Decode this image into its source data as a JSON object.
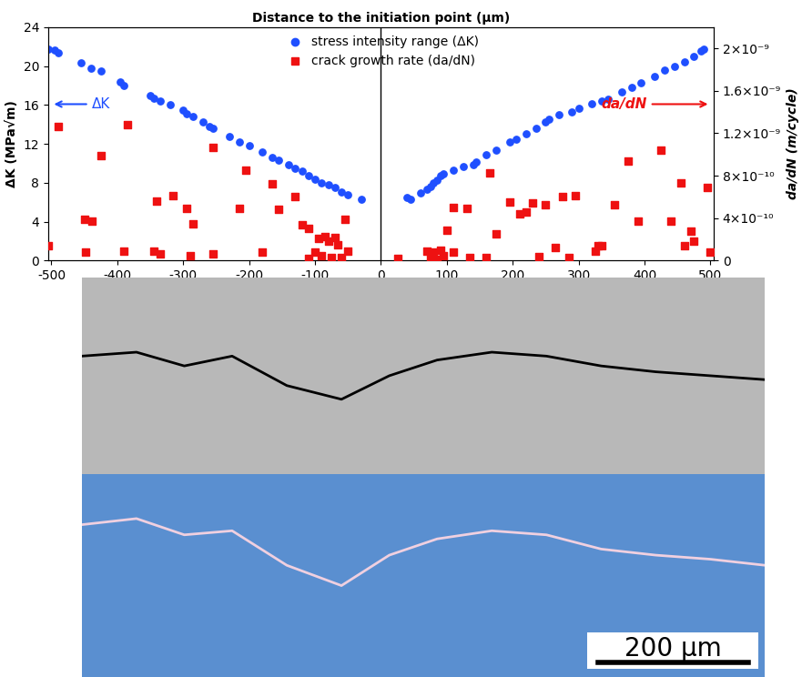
{
  "chart_data": {
    "type": "scatter",
    "x_label": "Distance to the initiation point (μm)",
    "y_label": "ΔK (MPa√m)",
    "y2_label": "da/dN (m/cycle)",
    "annotations": [
      "ΔK",
      "da/dN"
    ],
    "xlim": [
      -505,
      505
    ],
    "xticks": [
      -500,
      -400,
      -300,
      -200,
      -100,
      0,
      100,
      200,
      300,
      400,
      500
    ],
    "ylim": [
      0,
      24
    ],
    "yticks": [
      0,
      4,
      8,
      12,
      16,
      20,
      24
    ],
    "y2lim": [
      0,
      2.2e-09
    ],
    "y2ticks": [
      0,
      {
        "value": 4e-10,
        "label": "4×10⁻¹⁰"
      },
      {
        "value": 8e-10,
        "label": "8×10⁻¹⁰"
      },
      {
        "value": 1.2e-09,
        "label": "1.2×10⁻⁹"
      },
      {
        "value": 1.6e-09,
        "label": "1.6×10⁻⁹"
      },
      {
        "value": 2e-09,
        "label": "2×10⁻⁹"
      }
    ],
    "legend": "upper center",
    "series": [
      {
        "name": "stress intensity range (ΔK)",
        "color": "#1f4fff",
        "marker": "circle",
        "axis": "y",
        "x": [
          -505,
          -495,
          -490,
          -455,
          -440,
          -425,
          -395,
          -390,
          -350,
          -345,
          -335,
          -320,
          -300,
          -295,
          -285,
          -270,
          -260,
          -255,
          -230,
          -215,
          -200,
          -180,
          -165,
          -155,
          -140,
          -130,
          -120,
          -110,
          -100,
          -90,
          -80,
          -70,
          -60,
          -50,
          -30,
          40,
          45,
          60,
          70,
          75,
          80,
          85,
          90,
          95,
          110,
          125,
          140,
          145,
          160,
          175,
          195,
          205,
          220,
          235,
          250,
          255,
          270,
          290,
          300,
          320,
          335,
          345,
          365,
          380,
          395,
          415,
          430,
          445,
          460,
          475,
          485,
          490
        ],
        "values": [
          21.7,
          21.6,
          21.4,
          20.3,
          19.8,
          19.5,
          18.4,
          18.0,
          17.0,
          16.7,
          16.4,
          16.0,
          15.5,
          15.1,
          14.8,
          14.3,
          13.8,
          13.6,
          12.8,
          12.2,
          11.8,
          11.2,
          10.6,
          10.3,
          9.9,
          9.5,
          9.2,
          8.7,
          8.4,
          8.0,
          7.8,
          7.5,
          7.1,
          6.8,
          6.3,
          6.5,
          6.3,
          7.0,
          7.3,
          7.6,
          8.0,
          8.3,
          8.7,
          8.9,
          9.3,
          9.7,
          9.9,
          10.1,
          10.9,
          11.4,
          12.2,
          12.5,
          13.0,
          13.6,
          14.3,
          14.5,
          15.0,
          15.3,
          15.7,
          16.1,
          16.4,
          16.6,
          17.3,
          17.8,
          18.3,
          18.9,
          19.6,
          20.0,
          20.4,
          21.0,
          21.5,
          21.7
        ]
      },
      {
        "name": "crack growth rate (da/dN)",
        "color": "#ee1111",
        "marker": "square",
        "axis": "y2",
        "x": [
          -505,
          -490,
          -450,
          -448,
          -438,
          -425,
          -390,
          -385,
          -345,
          -340,
          -335,
          -315,
          -295,
          -290,
          -285,
          -255,
          -255,
          -205,
          -215,
          -180,
          -165,
          -155,
          -130,
          -120,
          -110,
          -95,
          -90,
          -85,
          -80,
          -75,
          -70,
          -65,
          -60,
          -55,
          -50,
          -100,
          -110,
          25,
          70,
          75,
          80,
          85,
          90,
          95,
          100,
          110,
          110,
          130,
          135,
          160,
          165,
          175,
          195,
          210,
          220,
          230,
          240,
          250,
          265,
          275,
          285,
          295,
          325,
          330,
          335,
          355,
          375,
          390,
          425,
          440,
          455,
          460,
          470,
          475,
          495,
          500
        ],
        "values": [
          1.4e-10,
          1.26e-09,
          3.9e-10,
          8e-11,
          3.7e-10,
          9.9e-10,
          9e-11,
          1.28e-09,
          9e-11,
          5.6e-10,
          6e-11,
          6.1e-10,
          4.9e-10,
          5e-11,
          3.5e-10,
          1.07e-09,
          6e-11,
          8.5e-10,
          4.9e-10,
          8e-11,
          7.2e-10,
          4.8e-10,
          6e-10,
          3.4e-10,
          3e-10,
          2.1e-10,
          5e-11,
          2.3e-10,
          1.8e-10,
          3e-11,
          2.2e-10,
          1.5e-10,
          3e-11,
          3.9e-10,
          9e-11,
          8e-11,
          2e-11,
          2e-11,
          9e-11,
          2e-11,
          8e-11,
          1e-11,
          1e-10,
          5e-11,
          2.9e-10,
          8e-11,
          5e-10,
          4.9e-10,
          3e-11,
          3e-11,
          8.3e-10,
          2.5e-10,
          5.5e-10,
          4.4e-10,
          4.6e-10,
          5.4e-10,
          4e-11,
          5.3e-10,
          1.2e-10,
          6e-10,
          3e-11,
          6.1e-10,
          9e-11,
          1.4e-10,
          1.4e-10,
          5.3e-10,
          9.4e-10,
          3.7e-10,
          1.04e-09,
          3.7e-10,
          7.3e-10,
          1.4e-10,
          2.8e-10,
          1.8e-10,
          6.9e-10,
          8e-11
        ]
      }
    ]
  },
  "scale_bar_label": "200 μm"
}
